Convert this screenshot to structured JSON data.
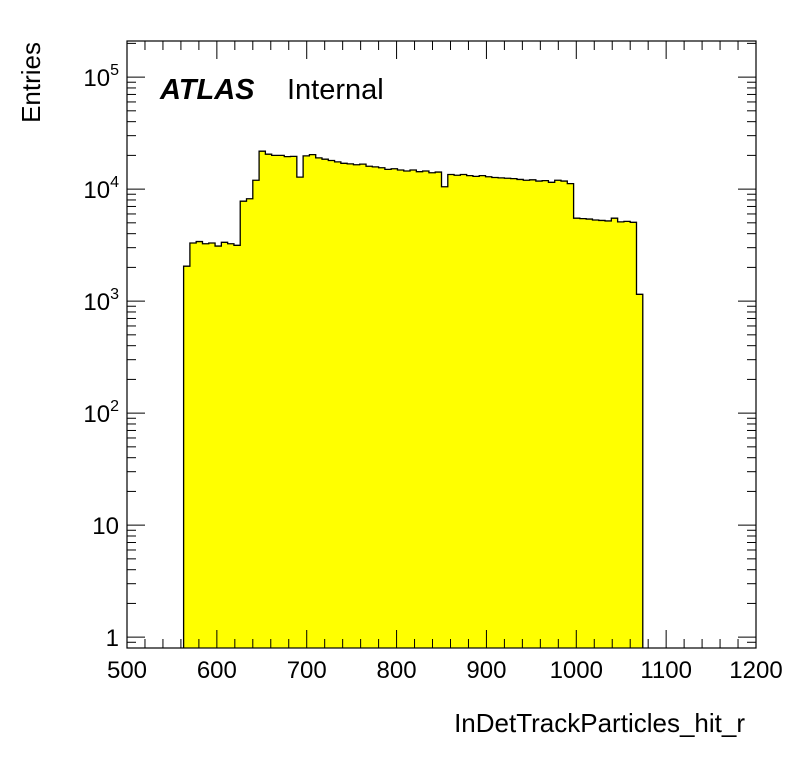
{
  "chart_data": {
    "type": "histogram",
    "label_primary": "ATLAS",
    "label_secondary": "Internal",
    "xlabel": "InDetTrackParticles_hit_r",
    "ylabel": "Entries",
    "xlim": [
      500,
      1200
    ],
    "ylim": [
      0.8,
      210000
    ],
    "yscale": "log",
    "fill_color": "#ffff00",
    "line_color": "#000000",
    "x_ticks": [
      "500",
      "600",
      "700",
      "800",
      "900",
      "1000",
      "1100",
      "1200"
    ],
    "y_ticks": [
      {
        "value": 1,
        "base": "1",
        "exp": ""
      },
      {
        "value": 10,
        "base": "10",
        "exp": ""
      },
      {
        "value": 100,
        "base": "10",
        "exp": "2"
      },
      {
        "value": 1000,
        "base": "10",
        "exp": "3"
      },
      {
        "value": 10000,
        "base": "10",
        "exp": "4"
      },
      {
        "value": 100000,
        "base": "10",
        "exp": "5"
      }
    ],
    "bin_width": 7,
    "bin_edges_start": 563,
    "values": [
      2050,
      3300,
      3400,
      3250,
      3300,
      3100,
      3350,
      3250,
      3150,
      7800,
      8200,
      12000,
      21800,
      20500,
      20000,
      20000,
      19500,
      19600,
      12800,
      19800,
      20300,
      19000,
      18500,
      18000,
      17500,
      17000,
      16800,
      16500,
      16700,
      16000,
      15800,
      15500,
      15000,
      15200,
      14800,
      14500,
      14800,
      14300,
      14500,
      14000,
      14200,
      10500,
      13500,
      13300,
      13500,
      13200,
      13000,
      13200,
      12900,
      12700,
      12600,
      12500,
      12400,
      12200,
      12000,
      12100,
      11800,
      11900,
      11500,
      12000,
      11800,
      11200,
      5500,
      5450,
      5400,
      5300,
      5250,
      5200,
      5500,
      5100,
      5150,
      5050,
      1150
    ]
  }
}
